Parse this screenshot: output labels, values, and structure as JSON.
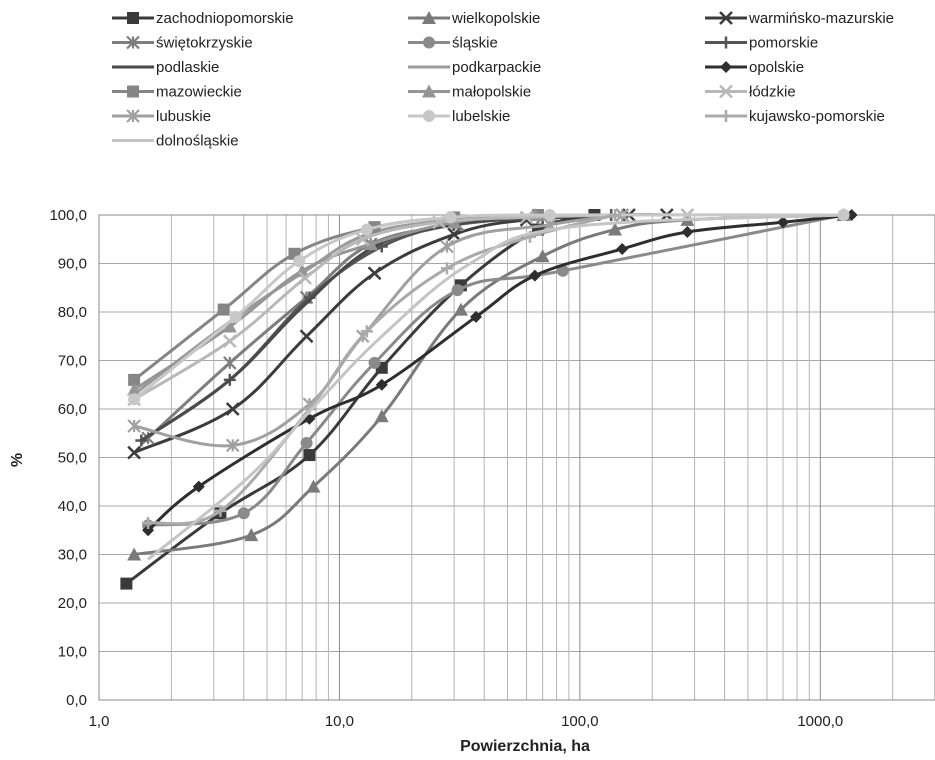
{
  "chart_data": {
    "type": "line",
    "x_scale": "log",
    "xlabel": "Powierzchnia, ha",
    "ylabel": "%",
    "xlim": [
      1,
      3000
    ],
    "ylim": [
      0,
      100
    ],
    "x_ticks": [
      1,
      10,
      100,
      1000
    ],
    "x_tick_labels": [
      "1,0",
      "10,0",
      "100,0",
      "1000,0"
    ],
    "y_ticks": [
      0,
      10,
      20,
      30,
      40,
      50,
      60,
      70,
      80,
      90,
      100
    ],
    "y_tick_labels": [
      "0,0",
      "10,0",
      "20,0",
      "30,0",
      "40,0",
      "50,0",
      "60,0",
      "70,0",
      "80,0",
      "90,0",
      "100,0"
    ],
    "grid": true,
    "legend_position": "top",
    "series": [
      {
        "name": "zachodniopomorskie",
        "color": "#3a3a3a",
        "marker": "square",
        "x": [
          1.3,
          3.2,
          7.5,
          15,
          32,
          67,
          115
        ],
        "y": [
          24,
          38.5,
          50.5,
          68.5,
          85.5,
          97,
          100
        ]
      },
      {
        "name": "wielkopolskie",
        "color": "#7a7a7a",
        "marker": "triangle",
        "x": [
          1.4,
          4.3,
          7.8,
          15,
          32,
          70,
          140,
          280,
          1250
        ],
        "y": [
          30,
          34,
          44,
          58.5,
          80.5,
          91.5,
          97,
          99,
          100
        ]
      },
      {
        "name": "warmińsko-mazurskie",
        "color": "#3c3c3c",
        "marker": "x",
        "x": [
          1.4,
          3.6,
          7.3,
          14,
          30,
          60,
          160,
          230
        ],
        "y": [
          51,
          60,
          75,
          88,
          96,
          99,
          100,
          100
        ]
      },
      {
        "name": "świętokrzyskie",
        "color": "#7e7e7e",
        "marker": "star",
        "x": [
          1.6,
          3.5,
          7.3,
          13.5,
          31,
          70,
          150
        ],
        "y": [
          54,
          69.5,
          83,
          94,
          98,
          99.5,
          100
        ]
      },
      {
        "name": "śląskie",
        "color": "#8a8a8a",
        "marker": "circle",
        "x": [
          1.6,
          4,
          7.3,
          14,
          31,
          85,
          1250
        ],
        "y": [
          36,
          38.5,
          53,
          69.5,
          84.5,
          88.5,
          100
        ]
      },
      {
        "name": "pomorskie",
        "color": "#555555",
        "marker": "plus",
        "x": [
          1.5,
          3.5,
          7.5,
          15,
          30,
          70,
          135
        ],
        "y": [
          53.5,
          66,
          83,
          93.5,
          98,
          99.5,
          100
        ]
      },
      {
        "name": "podlaskie",
        "color": "#4a4a4a",
        "marker": "none",
        "x": [
          1.5,
          3.5,
          7,
          14,
          30,
          70,
          130
        ],
        "y": [
          53.5,
          66,
          81,
          93.5,
          98,
          99.5,
          100
        ]
      },
      {
        "name": "podkarpackie",
        "color": "#9a9a9a",
        "marker": "none",
        "x": [
          1.4,
          3.5,
          7,
          13,
          30,
          70
        ],
        "y": [
          63,
          78,
          88,
          96,
          99,
          100
        ]
      },
      {
        "name": "opolskie",
        "color": "#2e2e2e",
        "marker": "diamond",
        "x": [
          1.6,
          2.6,
          7.5,
          15,
          37,
          65,
          150,
          280,
          700,
          1350
        ],
        "y": [
          35,
          44,
          58,
          65,
          79,
          87.5,
          93,
          96.5,
          98.5,
          100
        ]
      },
      {
        "name": "mazowieckie",
        "color": "#858585",
        "marker": "square",
        "x": [
          1.4,
          3.3,
          6.5,
          14,
          30,
          67
        ],
        "y": [
          66,
          80.5,
          92,
          97.5,
          99.5,
          100
        ]
      },
      {
        "name": "małopolskie",
        "color": "#959595",
        "marker": "triangle",
        "x": [
          1.4,
          3.5,
          7,
          13.5,
          30,
          65
        ],
        "y": [
          64,
          77,
          88.5,
          94,
          98.5,
          100
        ]
      },
      {
        "name": "łódzkie",
        "color": "#b8b8b8",
        "marker": "x",
        "x": [
          1.4,
          3.5,
          7.2,
          12.5,
          26,
          60,
          150,
          280
        ],
        "y": [
          62,
          74,
          87,
          95,
          98.5,
          99.5,
          100,
          100
        ]
      },
      {
        "name": "lubuskie",
        "color": "#a0a0a0",
        "marker": "star",
        "x": [
          1.4,
          3.6,
          7.5,
          12.5,
          28,
          75,
          150
        ],
        "y": [
          56.5,
          52.5,
          61,
          75,
          93.5,
          98,
          100
        ]
      },
      {
        "name": "lubelskie",
        "color": "#c8c8c8",
        "marker": "circle",
        "x": [
          1.4,
          3.7,
          6.8,
          13,
          29,
          75,
          1250
        ],
        "y": [
          62,
          79,
          90.5,
          97,
          99.5,
          100,
          100
        ]
      },
      {
        "name": "kujawsko-pomorskie",
        "color": "#aaaaaa",
        "marker": "plus",
        "x": [
          1.6,
          3.2,
          7.5,
          13,
          28,
          62,
          140
        ],
        "y": [
          36.5,
          39,
          60,
          76,
          89,
          95.5,
          100
        ]
      },
      {
        "name": "dolnośląskie",
        "color": "#c4c4c4",
        "marker": "none",
        "x": [
          1.6,
          4.2,
          8,
          15,
          35,
          90,
          1250
        ],
        "y": [
          29,
          46,
          61,
          75,
          90,
          97.5,
          100
        ]
      }
    ]
  }
}
